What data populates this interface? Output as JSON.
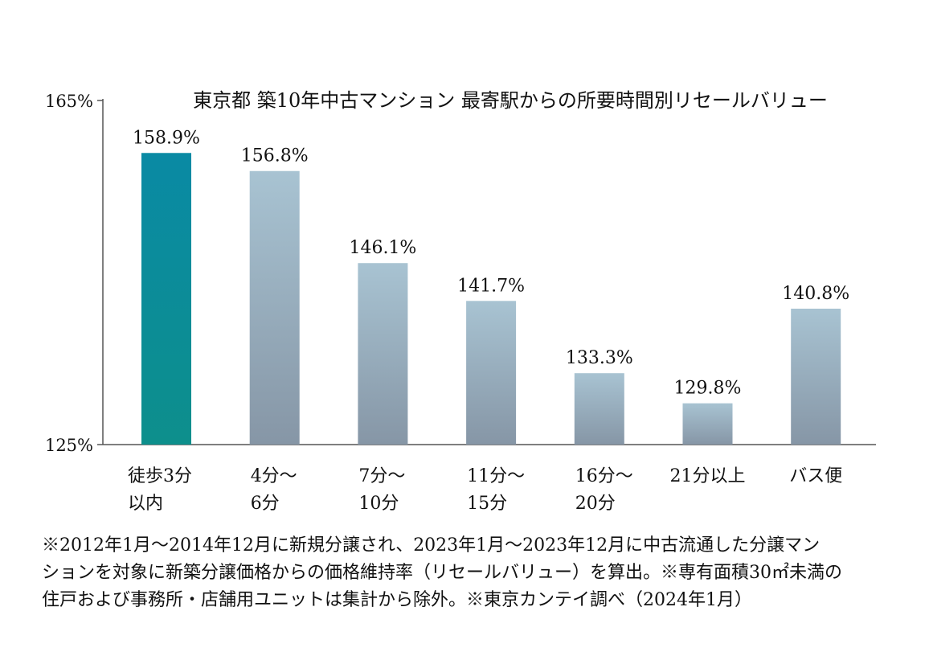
{
  "chart_data": {
    "type": "bar",
    "title": "東京都 築10年中古マンション 最寄駅からの所要時間別リセールバリュー",
    "xlabel": "",
    "ylabel": "",
    "ylim": [
      125,
      165
    ],
    "yticks": [
      "165%",
      "125%"
    ],
    "categories": [
      [
        "徒歩3分",
        "以内"
      ],
      [
        "4分〜",
        "6分"
      ],
      [
        "7分〜",
        "10分"
      ],
      [
        "11分〜",
        "15分"
      ],
      [
        "16分〜",
        "20分"
      ],
      [
        "21分以上"
      ],
      [
        "バス便"
      ]
    ],
    "values": [
      158.9,
      156.8,
      146.1,
      141.7,
      133.3,
      129.8,
      140.8
    ],
    "labels": [
      "158.9%",
      "156.8%",
      "146.1%",
      "141.7%",
      "133.3%",
      "129.8%",
      "140.8%"
    ],
    "highlight_index": 0,
    "colors": {
      "highlight_top": "#0a8aa4",
      "highlight_bottom": "#0d8f8c",
      "bar_top": "#a8c3d2",
      "bar_bottom": "#8696a6",
      "axis": "#555555"
    },
    "grid": false,
    "legend": "none"
  },
  "footnote": [
    "※2012年1月〜2014年12月に新規分譲され、2023年1月〜2023年12月に中古流通した分譲マン",
    "ションを対象に新築分譲価格からの価格維持率（リセールバリュー）を算出。※専有面積30㎡未満の",
    "住戸および事務所・店舗用ユニットは集計から除外。※東京カンテイ調べ（2024年1月）"
  ]
}
